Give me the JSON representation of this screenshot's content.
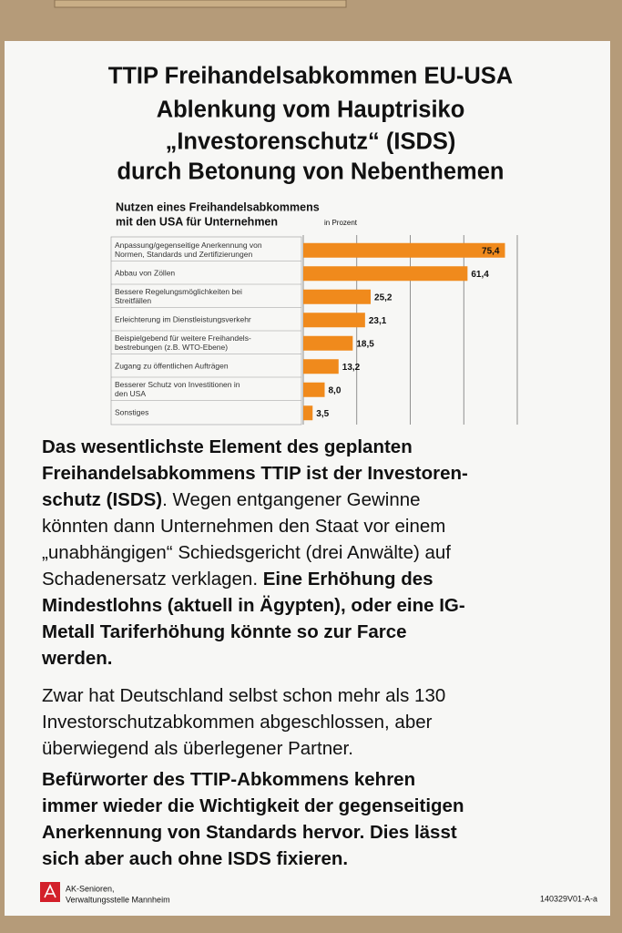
{
  "title_lines": [
    "TTIP Freihandelsabkommen EU-USA",
    "Ablenkung vom Hauptrisiko",
    "„Investorenschutz“ (ISDS)",
    "durch Betonung von Nebenthemen"
  ],
  "chart_data": {
    "type": "bar",
    "orientation": "horizontal",
    "title_lines": [
      "Nutzen eines Freihandelsabkommens",
      "mit den USA für Unternehmen"
    ],
    "unit": "in Prozent",
    "categories": [
      "Anpassung/gegenseitige Anerkennung von\nNormen, Standards und Zertifizierungen",
      "Abbau von Zöllen",
      "Bessere Regelungsmöglichkeiten bei\nStreitfällen",
      "Erleichterung im Dienstleistungsverkehr",
      "Beispielgebend für weitere Freihandels-\nbestrebungen (z.B. WTO-Ebene)",
      "Zugang zu öffentlichen Aufträgen",
      "Besserer Schutz von Investitionen in\nden USA",
      "Sonstiges"
    ],
    "values": [
      75.4,
      61.4,
      25.2,
      23.1,
      18.5,
      13.2,
      8.0,
      3.5
    ],
    "value_labels": [
      "75,4",
      "61,4",
      "25,2",
      "23,1",
      "18,5",
      "13,2",
      "8,0",
      "3,5"
    ],
    "color": "#f08a1c",
    "xlim": [
      0,
      80
    ],
    "xticks": [
      0,
      20,
      40,
      60,
      80
    ],
    "grid": true
  },
  "body": [
    [
      [
        {
          "text": "Das wesentlichste Element des geplanten",
          "bold": true
        }
      ],
      [
        {
          "text": "Freihandelsabkommens TTIP ist der Investoren-",
          "bold": true
        }
      ],
      [
        {
          "text": "schutz (ISDS)",
          "bold": true
        },
        {
          "text": ". Wegen entgangener Gewinne",
          "bold": false
        }
      ],
      [
        {
          "text": "könnten dann Unternehmen den Staat vor einem",
          "bold": false
        }
      ],
      [
        {
          "text": "„unabhängigen“ Schiedsgericht (drei Anwälte) auf",
          "bold": false
        }
      ],
      [
        {
          "text": "Schadenersatz verklagen. ",
          "bold": false
        },
        {
          "text": "Eine Erhöhung des",
          "bold": true
        }
      ],
      [
        {
          "text": "Mindestlohns (aktuell in Ägypten), oder eine IG-",
          "bold": true
        }
      ],
      [
        {
          "text": "Metall Tariferhöhung könnte so zur Farce",
          "bold": true
        }
      ],
      [
        {
          "text": "werden.",
          "bold": true
        }
      ]
    ],
    [
      [
        {
          "text": "Zwar hat Deutschland selbst schon mehr als 130",
          "bold": false
        }
      ],
      [
        {
          "text": "Investorschutzabkommen abgeschlossen, aber",
          "bold": false
        }
      ],
      [
        {
          "text": "überwiegend als überlegener Partner.",
          "bold": false
        }
      ]
    ],
    [
      [
        {
          "text": "Befürworter des TTIP-Abkommens kehren",
          "bold": true
        }
      ],
      [
        {
          "text": "immer wieder die Wichtigkeit der gegenseitigen",
          "bold": true
        }
      ],
      [
        {
          "text": "Anerkennung von Standards hervor. Dies lässt",
          "bold": true
        }
      ],
      [
        {
          "text": "sich aber auch ohne ISDS fixieren.",
          "bold": true
        }
      ]
    ]
  ],
  "footer": {
    "org_lines": [
      "AK-Senioren,",
      "Verwaltungsstelle Mannheim"
    ],
    "code": "140329V01-A-a"
  }
}
